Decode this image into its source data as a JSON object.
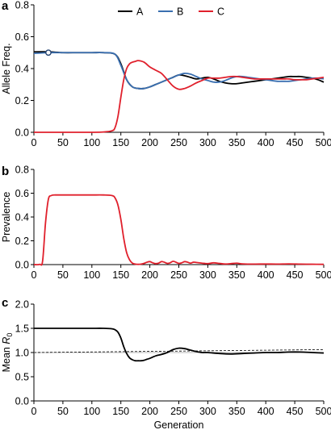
{
  "colors": {
    "A": "#000000",
    "B": "#3a6fb0",
    "C": "#e0202c"
  },
  "chart_data": [
    {
      "type": "line",
      "panel": "a",
      "ylabel": "Allele Freq.",
      "xlabel": "",
      "xlim": [
        0,
        500
      ],
      "ylim": [
        0,
        0.8
      ],
      "xticks": [
        "0",
        "50",
        "100",
        "150",
        "200",
        "250",
        "300",
        "350",
        "400",
        "450",
        "500"
      ],
      "yticks": [
        "0.0",
        "0.2",
        "0.4",
        "0.6",
        "0.8"
      ],
      "legend": {
        "placement": "top-center",
        "entries": [
          "A",
          "B",
          "C"
        ]
      },
      "initial_marker": {
        "x": 25,
        "y": 0.5
      },
      "series": [
        {
          "name": "A",
          "color_key": "A",
          "x": [
            0,
            25,
            50,
            75,
            100,
            120,
            140,
            150,
            160,
            170,
            180,
            190,
            200,
            210,
            220,
            230,
            240,
            250,
            260,
            270,
            280,
            290,
            300,
            310,
            320,
            330,
            340,
            350,
            360,
            370,
            380,
            390,
            400,
            410,
            420,
            430,
            440,
            450,
            460,
            470,
            480,
            490,
            500
          ],
          "y": [
            0.505,
            0.505,
            0.5,
            0.5,
            0.5,
            0.5,
            0.49,
            0.43,
            0.33,
            0.285,
            0.275,
            0.275,
            0.285,
            0.3,
            0.315,
            0.33,
            0.345,
            0.36,
            0.355,
            0.345,
            0.335,
            0.34,
            0.345,
            0.335,
            0.32,
            0.31,
            0.305,
            0.305,
            0.31,
            0.315,
            0.32,
            0.325,
            0.33,
            0.335,
            0.34,
            0.345,
            0.35,
            0.35,
            0.35,
            0.345,
            0.34,
            0.33,
            0.315
          ]
        },
        {
          "name": "B",
          "color_key": "B",
          "x": [
            0,
            25,
            50,
            75,
            100,
            120,
            140,
            150,
            160,
            170,
            180,
            190,
            200,
            210,
            220,
            230,
            240,
            250,
            260,
            270,
            280,
            290,
            300,
            310,
            320,
            330,
            340,
            350,
            360,
            370,
            380,
            390,
            400,
            410,
            420,
            430,
            440,
            450,
            460,
            470,
            480,
            490,
            500
          ],
          "y": [
            0.495,
            0.5,
            0.5,
            0.5,
            0.5,
            0.5,
            0.49,
            0.42,
            0.33,
            0.285,
            0.275,
            0.275,
            0.285,
            0.3,
            0.315,
            0.33,
            0.345,
            0.36,
            0.37,
            0.365,
            0.35,
            0.335,
            0.325,
            0.315,
            0.315,
            0.325,
            0.34,
            0.35,
            0.35,
            0.345,
            0.34,
            0.335,
            0.33,
            0.325,
            0.32,
            0.32,
            0.32,
            0.325,
            0.33,
            0.335,
            0.34,
            0.34,
            0.335
          ]
        },
        {
          "name": "C",
          "color_key": "C",
          "x": [
            0,
            25,
            50,
            75,
            100,
            120,
            135,
            140,
            145,
            150,
            155,
            160,
            165,
            170,
            175,
            180,
            190,
            200,
            210,
            220,
            230,
            240,
            250,
            260,
            270,
            280,
            290,
            300,
            310,
            320,
            330,
            340,
            350,
            360,
            370,
            380,
            390,
            400,
            410,
            420,
            430,
            440,
            450,
            460,
            470,
            480,
            490,
            500
          ],
          "y": [
            0,
            0,
            0,
            0,
            0,
            0.002,
            0.01,
            0.03,
            0.1,
            0.22,
            0.33,
            0.4,
            0.43,
            0.44,
            0.445,
            0.45,
            0.44,
            0.41,
            0.39,
            0.37,
            0.33,
            0.29,
            0.27,
            0.275,
            0.29,
            0.31,
            0.325,
            0.34,
            0.34,
            0.34,
            0.345,
            0.35,
            0.35,
            0.345,
            0.34,
            0.335,
            0.335,
            0.335,
            0.335,
            0.335,
            0.335,
            0.335,
            0.33,
            0.33,
            0.33,
            0.335,
            0.34,
            0.345
          ]
        }
      ]
    },
    {
      "type": "line",
      "panel": "b",
      "ylabel": "Prevalence",
      "xlabel": "",
      "xlim": [
        0,
        500
      ],
      "ylim": [
        0,
        0.8
      ],
      "xticks": [
        "0",
        "50",
        "100",
        "150",
        "200",
        "250",
        "300",
        "350",
        "400",
        "450",
        "500"
      ],
      "yticks": [
        "0.0",
        "0.2",
        "0.4",
        "0.6",
        "0.8"
      ],
      "series": [
        {
          "name": "C",
          "color_key": "C",
          "x": [
            0,
            10,
            15,
            20,
            25,
            30,
            35,
            40,
            60,
            80,
            100,
            120,
            135,
            140,
            145,
            150,
            155,
            160,
            165,
            170,
            175,
            180,
            185,
            190,
            195,
            200,
            205,
            210,
            215,
            220,
            225,
            230,
            235,
            240,
            245,
            250,
            255,
            260,
            265,
            270,
            275,
            280,
            290,
            300,
            310,
            320,
            330,
            340,
            350,
            360,
            380,
            400,
            420,
            440,
            460,
            480,
            500
          ],
          "y": [
            0,
            0.002,
            0.03,
            0.35,
            0.55,
            0.58,
            0.585,
            0.585,
            0.585,
            0.585,
            0.585,
            0.585,
            0.58,
            0.56,
            0.5,
            0.38,
            0.22,
            0.1,
            0.04,
            0.012,
            0.004,
            0.002,
            0.004,
            0.01,
            0.02,
            0.025,
            0.015,
            0.008,
            0.012,
            0.025,
            0.02,
            0.01,
            0.015,
            0.028,
            0.02,
            0.01,
            0.015,
            0.025,
            0.02,
            0.012,
            0.02,
            0.018,
            0.012,
            0.008,
            0.015,
            0.01,
            0.005,
            0.008,
            0.012,
            0.006,
            0.004,
            0.005,
            0.004,
            0.006,
            0.004,
            0.003,
            0.002
          ]
        }
      ]
    },
    {
      "type": "line",
      "panel": "c",
      "ylabel": "Mean R0",
      "ylabel_main": "Mean ",
      "ylabel_italic": "R",
      "ylabel_sub": "0",
      "xlabel": "Generation",
      "xlim": [
        0,
        500
      ],
      "ylim": [
        0,
        2.0
      ],
      "xticks": [
        "0",
        "50",
        "100",
        "150",
        "200",
        "250",
        "300",
        "350",
        "400",
        "450",
        "500"
      ],
      "yticks": [
        "0.0",
        "0.5",
        "1.0",
        "1.5",
        "2.0"
      ],
      "series": [
        {
          "name": "mean",
          "color_key": "A",
          "x": [
            0,
            25,
            50,
            75,
            100,
            120,
            135,
            140,
            145,
            150,
            155,
            160,
            165,
            170,
            175,
            180,
            185,
            190,
            195,
            200,
            210,
            220,
            230,
            240,
            250,
            260,
            270,
            280,
            290,
            300,
            320,
            340,
            360,
            380,
            400,
            420,
            440,
            460,
            480,
            500
          ],
          "y": [
            1.5,
            1.5,
            1.5,
            1.5,
            1.5,
            1.5,
            1.49,
            1.47,
            1.42,
            1.3,
            1.12,
            0.98,
            0.89,
            0.85,
            0.83,
            0.83,
            0.83,
            0.84,
            0.86,
            0.88,
            0.93,
            0.96,
            1.0,
            1.06,
            1.09,
            1.08,
            1.05,
            1.02,
            1.0,
            1.0,
            0.98,
            0.97,
            0.98,
            0.99,
            1.0,
            1.0,
            1.01,
            1.01,
            1.0,
            0.99
          ]
        }
      ],
      "reference_lines": [
        {
          "kind": "horizontal",
          "y": 1.0,
          "style": "solid-light"
        },
        {
          "kind": "trend",
          "x": [
            0,
            500
          ],
          "y": [
            1.0,
            1.06
          ],
          "style": "dashed"
        }
      ]
    }
  ]
}
